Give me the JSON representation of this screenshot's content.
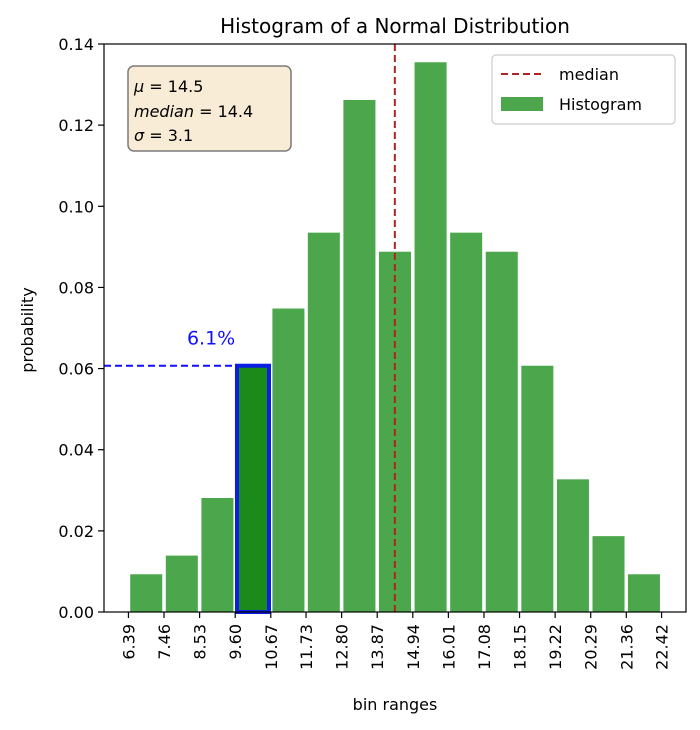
{
  "chart_data": {
    "type": "bar",
    "title": "Histogram of a Normal Distribution",
    "xlabel": "bin ranges",
    "ylabel": "probability",
    "bin_edges": [
      "6.39",
      "7.46",
      "8.53",
      "9.60",
      "10.67",
      "11.73",
      "12.80",
      "13.87",
      "14.94",
      "16.01",
      "17.08",
      "18.15",
      "19.22",
      "20.29",
      "21.36",
      "22.42"
    ],
    "values": [
      0.0093,
      0.0139,
      0.0281,
      0.0607,
      0.0748,
      0.0935,
      0.1262,
      0.0888,
      0.1355,
      0.0935,
      0.0888,
      0.0607,
      0.0327,
      0.0187,
      0.0093
    ],
    "ylim": [
      0,
      0.14
    ],
    "yticks": [
      "0.00",
      "0.02",
      "0.04",
      "0.06",
      "0.08",
      "0.10",
      "0.12",
      "0.14"
    ],
    "grid": false,
    "bar_color": "#4ca64c",
    "median": 14.4,
    "median_color": "#b22222",
    "highlight": {
      "bin_index": 3,
      "label": "6.1%",
      "value": 0.0607,
      "fill_color": "#1a8a1a",
      "edge_color": "#0a1ee6",
      "line_color": "#1010ff"
    },
    "stats_box": {
      "lines": [
        {
          "symbol": "μ",
          "eq": " = 14.5"
        },
        {
          "symbol": "median",
          "eq": " = 14.4"
        },
        {
          "symbol": "σ",
          "eq": " = 3.1"
        }
      ],
      "background": "#f8ecd6"
    },
    "legend": {
      "position": "upper right",
      "entries": [
        "median",
        "Histogram"
      ]
    }
  }
}
